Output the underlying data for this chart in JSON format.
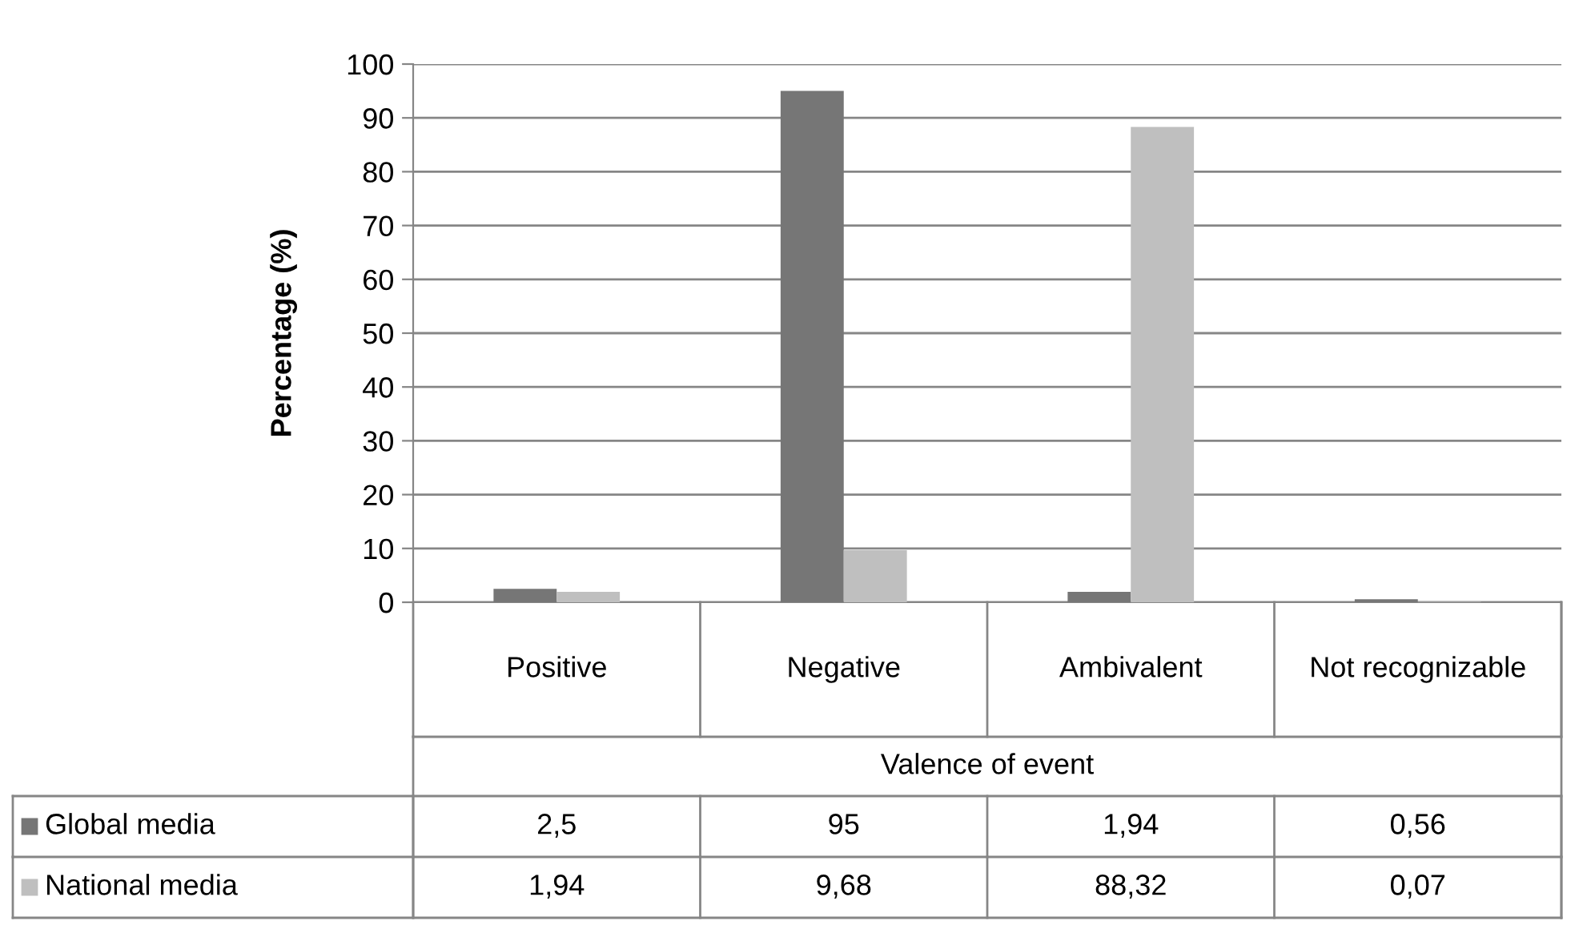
{
  "chart_data": {
    "type": "bar",
    "ylabel": "Percentage (%)",
    "xlabel": "Valence of event",
    "categories": [
      "Positive",
      "Negative",
      "Ambivalent",
      "Not recognizable"
    ],
    "series": [
      {
        "name": "Global media",
        "color": "#767676",
        "values": [
          2.5,
          95,
          1.94,
          0.56
        ],
        "value_labels": [
          "2,5",
          "95",
          "1,94",
          "0,56"
        ]
      },
      {
        "name": "National media",
        "color": "#bfbfbf",
        "values": [
          1.94,
          9.68,
          88.32,
          0.07
        ],
        "value_labels": [
          "1,94",
          "9,68",
          "88,32",
          "0,07"
        ]
      }
    ],
    "ylim": [
      0,
      100
    ],
    "yticks": [
      0,
      10,
      20,
      30,
      40,
      50,
      60,
      70,
      80,
      90,
      100
    ],
    "grid": "y",
    "legend": "bottom"
  }
}
